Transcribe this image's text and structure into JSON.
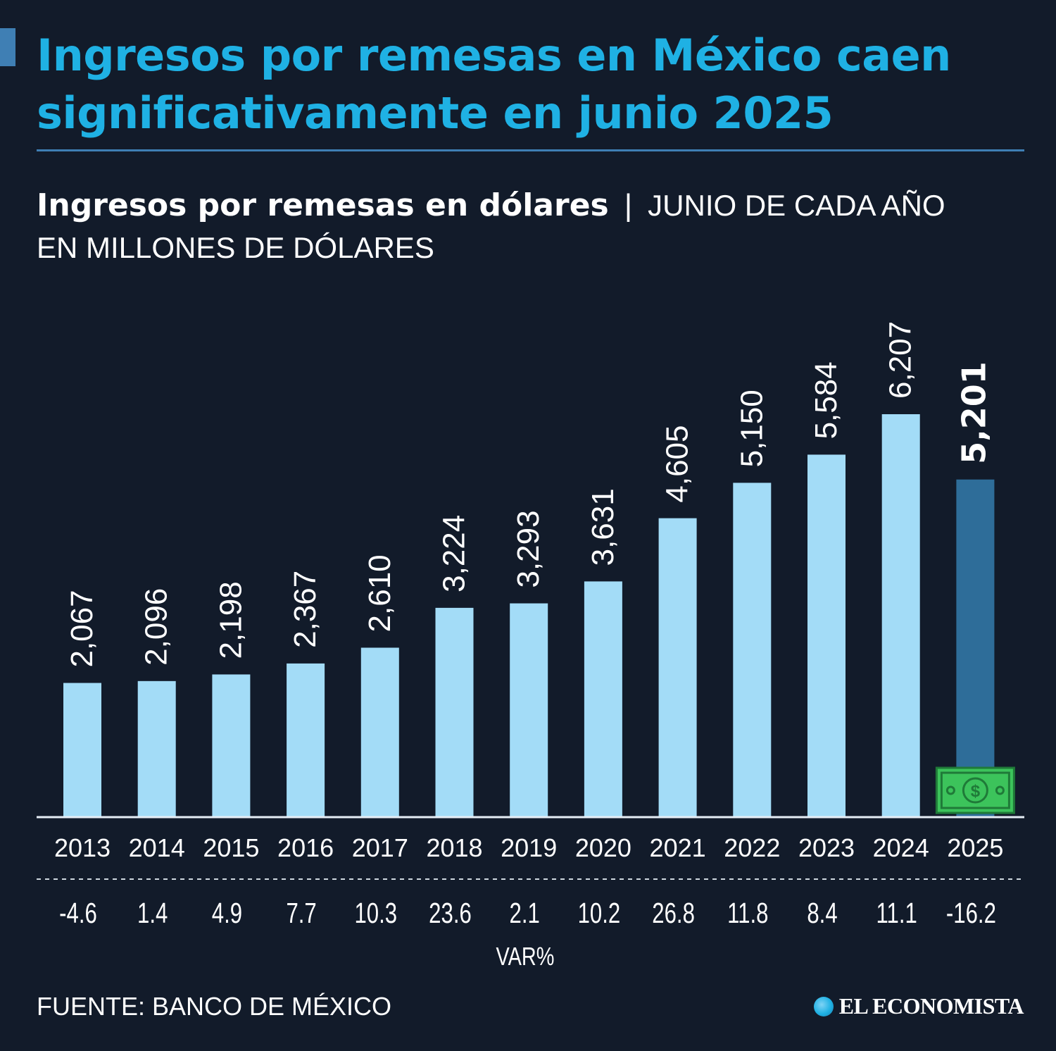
{
  "header": {
    "headline": "Ingresos por remesas en México caen significativamente en junio 2025",
    "subtitle": "Ingresos por remesas en dólares",
    "divider": "|",
    "qualifier": "JUNIO DE CADA AÑO",
    "units": "EN MILLONES DE DÓLARES"
  },
  "footer": {
    "source": "FUENTE: BANCO DE MÉXICO",
    "brand": "EL ECONOMISTA"
  },
  "colors": {
    "background": "#121b2a",
    "headline": "#1fb1e4",
    "bar": "#a3dcf7",
    "highlight_bar": "#2e6d99",
    "money_icon": "#3cc35b"
  },
  "chart_data": {
    "type": "bar",
    "title": "Ingresos por remesas en dólares",
    "subtitle": "JUNIO DE CADA AÑO",
    "ylabel": "EN MILLONES DE DÓLARES",
    "categories": [
      "2013",
      "2014",
      "2015",
      "2016",
      "2017",
      "2018",
      "2019",
      "2020",
      "2021",
      "2022",
      "2023",
      "2024",
      "2025"
    ],
    "values": [
      2067,
      2096,
      2198,
      2367,
      2610,
      3224,
      3293,
      3631,
      4605,
      5150,
      5584,
      6207,
      5201
    ],
    "value_labels": [
      "2,067",
      "2,096",
      "2,198",
      "2,367",
      "2,610",
      "3,224",
      "3,293",
      "3,631",
      "4,605",
      "5,150",
      "5,584",
      "6,207",
      "5,201"
    ],
    "var_pct_label": "VAR%",
    "var_pct": [
      "-4.6",
      "1.4",
      "4.9",
      "7.7",
      "10.3",
      "23.6",
      "2.1",
      "10.2",
      "26.8",
      "11.8",
      "8.4",
      "11.1",
      "-16.2"
    ],
    "highlight_index": 12,
    "highlight_icon": "dollar-bill-icon",
    "ylim": [
      0,
      6207
    ],
    "grid": false,
    "legend": "none"
  }
}
